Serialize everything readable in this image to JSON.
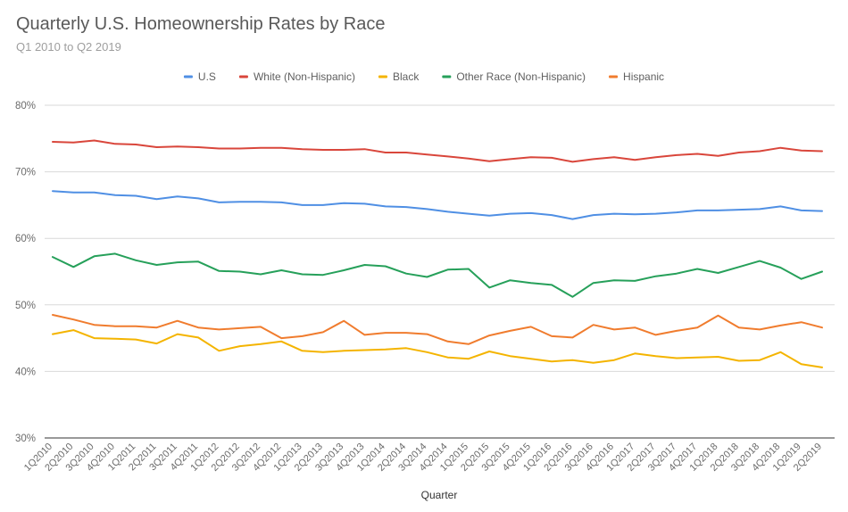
{
  "chart_data": {
    "type": "line",
    "title": "Quarterly U.S. Homeownership Rates by Race",
    "subtitle": "Q1 2010 to Q2 2019",
    "xlabel": "Quarter",
    "ylabel": "",
    "ylim": [
      30,
      80
    ],
    "yticks": [
      "30%",
      "40%",
      "50%",
      "60%",
      "70%",
      "80%"
    ],
    "ytick_values": [
      30,
      40,
      50,
      60,
      70,
      80
    ],
    "grid": true,
    "legend_position": "top",
    "categories": [
      "1Q2010",
      "2Q2010",
      "3Q2010",
      "4Q2010",
      "1Q2011",
      "2Q2011",
      "3Q2011",
      "4Q2011",
      "1Q2012",
      "2Q2012",
      "3Q2012",
      "4Q2012",
      "1Q2013",
      "2Q2013",
      "3Q2013",
      "4Q2013",
      "1Q2014",
      "2Q2014",
      "3Q2014",
      "4Q2014",
      "1Q2015",
      "2Q2015",
      "3Q2015",
      "4Q2015",
      "1Q2016",
      "2Q2016",
      "3Q2016",
      "4Q2016",
      "1Q2017",
      "2Q2017",
      "3Q2017",
      "4Q2017",
      "1Q2018",
      "2Q2018",
      "3Q2018",
      "4Q2018",
      "1Q2019",
      "2Q2019"
    ],
    "series": [
      {
        "name": "U.S",
        "color": "#4f8fe4",
        "values": [
          67.1,
          66.9,
          66.9,
          66.5,
          66.4,
          65.9,
          66.3,
          66.0,
          65.4,
          65.5,
          65.5,
          65.4,
          65.0,
          65.0,
          65.3,
          65.2,
          64.8,
          64.7,
          64.4,
          64.0,
          63.7,
          63.4,
          63.7,
          63.8,
          63.5,
          62.9,
          63.5,
          63.7,
          63.6,
          63.7,
          63.9,
          64.2,
          64.2,
          64.3,
          64.4,
          64.8,
          64.2,
          64.1
        ]
      },
      {
        "name": "White (Non-Hispanic)",
        "color": "#d9463b",
        "values": [
          74.5,
          74.4,
          74.7,
          74.2,
          74.1,
          73.7,
          73.8,
          73.7,
          73.5,
          73.5,
          73.6,
          73.6,
          73.4,
          73.3,
          73.3,
          73.4,
          72.9,
          72.9,
          72.6,
          72.3,
          72.0,
          71.6,
          71.9,
          72.2,
          72.1,
          71.5,
          71.9,
          72.2,
          71.8,
          72.2,
          72.5,
          72.7,
          72.4,
          72.9,
          73.1,
          73.6,
          73.2,
          73.1
        ]
      },
      {
        "name": "Black",
        "color": "#f4b400",
        "values": [
          45.6,
          46.2,
          45.0,
          44.9,
          44.8,
          44.2,
          45.6,
          45.1,
          43.1,
          43.8,
          44.1,
          44.5,
          43.1,
          42.9,
          43.1,
          43.2,
          43.3,
          43.5,
          42.9,
          42.1,
          41.9,
          43.0,
          42.3,
          41.9,
          41.5,
          41.7,
          41.3,
          41.7,
          42.7,
          42.3,
          42.0,
          42.1,
          42.2,
          41.6,
          41.7,
          42.9,
          41.1,
          40.6
        ]
      },
      {
        "name": "Other Race (Non-Hispanic)",
        "color": "#26a05a",
        "values": [
          57.2,
          55.7,
          57.3,
          57.7,
          56.7,
          56.0,
          56.4,
          56.5,
          55.1,
          55.0,
          54.6,
          55.2,
          54.6,
          54.5,
          55.2,
          56.0,
          55.8,
          54.7,
          54.2,
          55.3,
          55.4,
          52.6,
          53.7,
          53.3,
          53.0,
          51.2,
          53.3,
          53.7,
          53.6,
          54.3,
          54.7,
          55.4,
          54.8,
          55.7,
          56.6,
          55.6,
          53.9,
          55.0
        ]
      },
      {
        "name": "Hispanic",
        "color": "#f07c2e",
        "values": [
          48.5,
          47.8,
          47.0,
          46.8,
          46.8,
          46.6,
          47.6,
          46.6,
          46.3,
          46.5,
          46.7,
          45.0,
          45.3,
          45.9,
          47.6,
          45.5,
          45.8,
          45.8,
          45.6,
          44.5,
          44.1,
          45.4,
          46.1,
          46.7,
          45.3,
          45.1,
          47.0,
          46.3,
          46.6,
          45.5,
          46.1,
          46.6,
          48.4,
          46.6,
          46.3,
          46.9,
          47.4,
          46.6
        ]
      }
    ]
  }
}
